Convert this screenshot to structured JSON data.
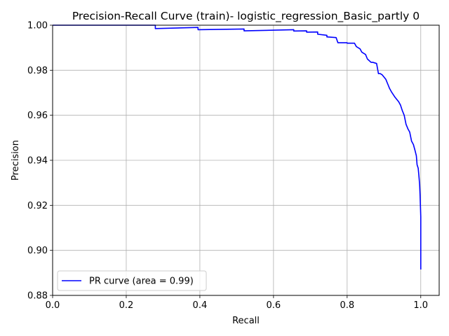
{
  "chart_data": {
    "type": "line",
    "title": "Precision-Recall Curve (train)- logistic_regression_Basic_partly 0",
    "xlabel": "Recall",
    "ylabel": "Precision",
    "xlim": [
      0,
      1.05
    ],
    "ylim": [
      0.88,
      1.0
    ],
    "grid": true,
    "legend_position": "lower-left",
    "x_ticks": [
      "0.0",
      "0.2",
      "0.4",
      "0.6",
      "0.8",
      "1.0"
    ],
    "y_ticks": [
      "0.88",
      "0.90",
      "0.92",
      "0.94",
      "0.96",
      "0.98",
      "1.00"
    ],
    "series": [
      {
        "name": "PR curve (area = 0.99)",
        "color": "#0000ff",
        "x": [
          0.0,
          0.279,
          0.279,
          0.395,
          0.395,
          0.52,
          0.52,
          0.655,
          0.655,
          0.69,
          0.69,
          0.72,
          0.72,
          0.745,
          0.745,
          0.77,
          0.775,
          0.8,
          0.8,
          0.82,
          0.825,
          0.835,
          0.84,
          0.85,
          0.855,
          0.865,
          0.87,
          0.88,
          0.885,
          0.89,
          0.895,
          0.905,
          0.91,
          0.915,
          0.92,
          0.93,
          0.94,
          0.945,
          0.95,
          0.955,
          0.96,
          0.965,
          0.97,
          0.975,
          0.98,
          0.985,
          0.988,
          0.99,
          0.993,
          0.995,
          0.997,
          0.998,
          0.999,
          1.0,
          1.0
        ],
        "y": [
          1.0,
          1.0,
          0.9985,
          0.999,
          0.998,
          0.9983,
          0.9975,
          0.998,
          0.9974,
          0.9975,
          0.9969,
          0.997,
          0.996,
          0.9955,
          0.9948,
          0.9945,
          0.9922,
          0.9922,
          0.992,
          0.992,
          0.9905,
          0.9895,
          0.988,
          0.987,
          0.985,
          0.9835,
          0.9835,
          0.983,
          0.9785,
          0.9785,
          0.978,
          0.976,
          0.974,
          0.972,
          0.9705,
          0.968,
          0.966,
          0.9645,
          0.962,
          0.96,
          0.956,
          0.954,
          0.9525,
          0.9485,
          0.947,
          0.944,
          0.942,
          0.938,
          0.9365,
          0.933,
          0.929,
          0.925,
          0.92,
          0.915,
          0.8915
        ]
      }
    ]
  }
}
